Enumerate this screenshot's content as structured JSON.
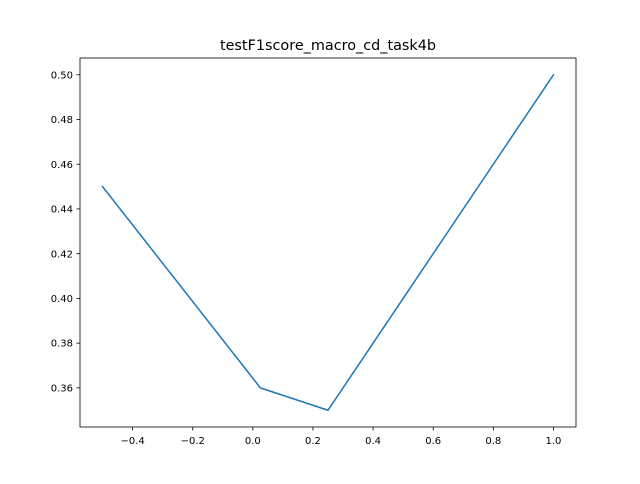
{
  "chart_data": {
    "type": "line",
    "title": "testF1score_macro_cd_task4b",
    "xlabel": "",
    "ylabel": "",
    "xlim": [
      -0.575,
      1.075
    ],
    "ylim": [
      0.3425,
      0.5075
    ],
    "xticks": [
      -0.4,
      -0.2,
      0.0,
      0.2,
      0.4,
      0.6,
      0.8,
      1.0
    ],
    "xtick_labels": [
      "−0.4",
      "−0.2",
      "0.0",
      "0.2",
      "0.4",
      "0.6",
      "0.8",
      "1.0"
    ],
    "yticks": [
      0.36,
      0.38,
      0.4,
      0.42,
      0.44,
      0.46,
      0.48,
      0.5
    ],
    "ytick_labels": [
      "0.36",
      "0.38",
      "0.40",
      "0.42",
      "0.44",
      "0.46",
      "0.48",
      "0.50"
    ],
    "grid": false,
    "series": [
      {
        "color": "#1f77b4",
        "x": [
          -0.5,
          0.025,
          0.25,
          1.0
        ],
        "y": [
          0.45,
          0.36,
          0.35,
          0.5
        ]
      }
    ]
  }
}
